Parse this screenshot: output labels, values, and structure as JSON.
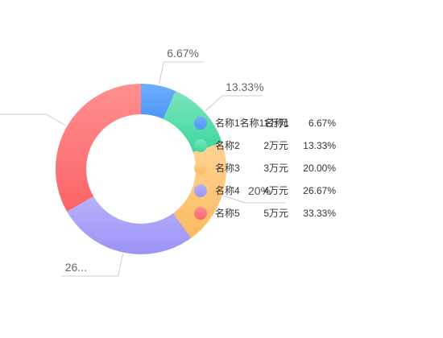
{
  "chart_data": {
    "type": "pie",
    "variant": "donut",
    "title": "",
    "unit": "万元",
    "categories": [
      "名称1名称1名称1",
      "名称2",
      "名称3",
      "名称4",
      "名称5"
    ],
    "values": [
      1,
      2,
      3,
      4,
      5
    ],
    "value_labels": [
      "1万元",
      "2万元",
      "3万元",
      "4万元",
      "5万元"
    ],
    "percent_labels": [
      "6.67%",
      "13.33%",
      "20.00%",
      "26.67%",
      "33.33%"
    ],
    "callout_labels": [
      "6.67%",
      "13.33%",
      "20%",
      "26...",
      ""
    ],
    "colors": [
      "#4e97f8",
      "#3ed59e",
      "#fcba5f",
      "#9c93f4",
      "#fb6468"
    ],
    "colors_light": [
      "#6eaefb",
      "#7be6bd",
      "#ffd396",
      "#b7b1fb",
      "#ff8f90"
    ],
    "legend_position": "right"
  }
}
